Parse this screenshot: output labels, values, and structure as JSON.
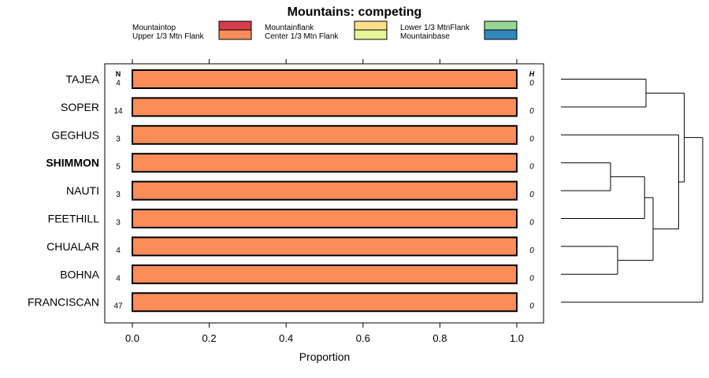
{
  "chart_data": {
    "type": "bar",
    "title": "Mountains: competing",
    "xlabel": "Proportion",
    "ylabel": "",
    "xlim": [
      -0.07,
      1.07
    ],
    "xticks": [
      0.0,
      0.2,
      0.4,
      0.6,
      0.8,
      1.0
    ],
    "xtick_labels": [
      "0.0",
      "0.2",
      "0.4",
      "0.6",
      "0.8",
      "1.0"
    ],
    "n_header": "N",
    "h_header": "H",
    "legend_placement": "top",
    "legend": [
      {
        "label": "Mountaintop",
        "color": "#d53e4f"
      },
      {
        "label": "Upper 1/3 Mtn Flank",
        "color": "#fc8d59"
      },
      {
        "label": "Mountainflank",
        "color": "#fee08b"
      },
      {
        "label": "Center 1/3 Mtn Flank",
        "color": "#e6f598"
      },
      {
        "label": "Lower 1/3 MtnFlank",
        "color": "#99d594"
      },
      {
        "label": "Mountainbase",
        "color": "#3288bd"
      }
    ],
    "highlighted": "SHIMMON",
    "categories": [
      "TAJEA",
      "SOPER",
      "GEGHUS",
      "SHIMMON",
      "NAUTI",
      "FEETHILL",
      "CHUALAR",
      "BOHNA",
      "FRANCISCAN"
    ],
    "n": [
      "4",
      "14",
      "3",
      "5",
      "3",
      "3",
      "4",
      "4",
      "47"
    ],
    "h": [
      "0",
      "0",
      "0",
      "0",
      "0",
      "0",
      "0",
      "0",
      "0"
    ],
    "series": [
      {
        "color": "#fc8d59",
        "values": [
          1,
          1,
          1,
          1,
          1,
          1,
          1,
          1,
          1
        ]
      }
    ],
    "dendrogram_merges": [
      {
        "a": "TAJEA",
        "b": "SOPER",
        "height": 0.6
      },
      {
        "a": "SHIMMON",
        "b": "NAUTI",
        "height": 0.35
      },
      {
        "a": "CHUALAR",
        "b": "BOHNA",
        "height": 0.4
      },
      {
        "a": "SHIMMON+NAUTI",
        "b": "FEETHILL",
        "height": 0.59
      },
      {
        "a": "SHIMMON+NAUTI+FEETHILL",
        "b": "CHUALAR+BOHNA",
        "height": 0.65
      },
      {
        "a": "GEGHUS",
        "b": "SHIMMON+NAUTI+FEETHILL+CHUALAR+BOHNA",
        "height": 0.83
      },
      {
        "a": "TAJEA+SOPER",
        "b": "GEGHUS+SHIMMON+NAUTI+FEETHILL+CHUALAR+BOHNA",
        "height": 0.87
      },
      {
        "a": "ALL-BUT-FRANCISCAN",
        "b": "FRANCISCAN",
        "height": 1.0
      }
    ]
  }
}
